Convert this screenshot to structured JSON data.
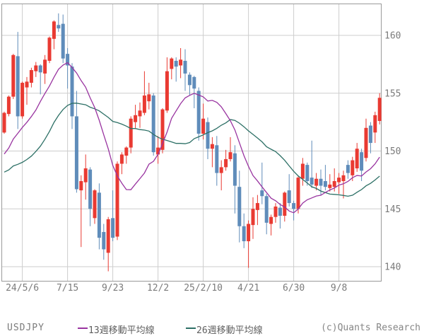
{
  "footer": {
    "pair_label": "USDJPY",
    "legend": [
      {
        "label": "13週移動平均線",
        "color": "#9934a0"
      },
      {
        "label": "26週移動平均線",
        "color": "#2d7066"
      }
    ],
    "copyright": "(c)Quants Research"
  },
  "chart_data": {
    "type": "candlestick",
    "symbol": "USDJPY",
    "interval": "weekly",
    "title": "",
    "xlabel": "",
    "ylabel": "",
    "grid": true,
    "legend_position": "bottom",
    "y_axis": {
      "ticks": [
        140,
        145,
        150,
        155,
        160
      ],
      "side": "right",
      "min": 138.7,
      "max": 162.9
    },
    "x_axis": {
      "labels": [
        {
          "text": "24/5/6",
          "candle_index": 4
        },
        {
          "text": "7/15",
          "candle_index": 14
        },
        {
          "text": "9/23",
          "candle_index": 24
        },
        {
          "text": "12/2",
          "candle_index": 34
        },
        {
          "text": "25/2/10",
          "candle_index": 44
        },
        {
          "text": "4/21",
          "candle_index": 54
        },
        {
          "text": "6/30",
          "candle_index": 64
        },
        {
          "text": "9/8",
          "candle_index": 74
        }
      ]
    },
    "colors": {
      "up": "#e93a32",
      "down": "#5f8cba",
      "ma13": "#9934a0",
      "ma26": "#2d7066",
      "grid": "#cdcdcd",
      "border": "#9a9a9a",
      "text": "#7b7b7b"
    },
    "series": [
      {
        "name": "13週移動平均線",
        "type": "sma",
        "window": 13,
        "color": "#9934a0"
      },
      {
        "name": "26週移動平均線",
        "type": "sma",
        "window": 26,
        "color": "#2d7066"
      }
    ],
    "ma_seed_closes": [
      149.7,
      149.4,
      149.4,
      151.5,
      149.6,
      149.4,
      146.8,
      145.0,
      142.2,
      142.4,
      141.0,
      144.6,
      144.9,
      148.1,
      148.2,
      146.5,
      149.3,
      150.2,
      150.5,
      150.1,
      147.1,
      149.0,
      151.4,
      151.4,
      151.6
    ],
    "candle_columns": [
      "open",
      "high",
      "low",
      "close"
    ],
    "candles": [
      [
        151.6,
        153.4,
        151.5,
        153.3
      ],
      [
        153.2,
        154.8,
        153.0,
        154.7
      ],
      [
        154.7,
        158.4,
        154.5,
        158.3
      ],
      [
        158.2,
        160.3,
        151.9,
        153.0
      ],
      [
        153.0,
        156.0,
        152.8,
        155.9
      ],
      [
        155.5,
        156.4,
        154.0,
        156.0
      ],
      [
        155.9,
        157.2,
        155.5,
        157.0
      ],
      [
        156.9,
        157.7,
        156.4,
        157.4
      ],
      [
        157.4,
        157.5,
        154.9,
        156.8
      ],
      [
        156.7,
        158.3,
        155.8,
        157.9
      ],
      [
        157.8,
        159.9,
        157.6,
        159.8
      ],
      [
        159.7,
        161.3,
        158.8,
        161.2
      ],
      [
        160.9,
        161.9,
        160.3,
        160.6
      ],
      [
        161.0,
        161.8,
        157.6,
        158.0
      ],
      [
        158.4,
        158.9,
        155.4,
        157.4
      ],
      [
        157.3,
        157.6,
        151.9,
        153.0
      ],
      [
        153.0,
        155.2,
        146.4,
        146.7
      ],
      [
        146.6,
        147.9,
        141.7,
        147.4
      ],
      [
        147.3,
        149.7,
        145.8,
        148.5
      ],
      [
        148.4,
        148.6,
        143.5,
        145.0
      ],
      [
        144.2,
        146.7,
        143.7,
        146.6
      ],
      [
        146.4,
        147.2,
        141.5,
        142.5
      ],
      [
        143.0,
        143.7,
        140.6,
        141.5
      ],
      [
        141.2,
        144.3,
        139.6,
        144.1
      ],
      [
        144.2,
        146.6,
        142.2,
        142.5
      ],
      [
        142.6,
        149.1,
        142.3,
        148.9
      ],
      [
        148.9,
        149.9,
        148.0,
        149.7
      ],
      [
        149.6,
        150.4,
        148.9,
        150.3
      ],
      [
        150.3,
        153.0,
        149.8,
        152.8
      ],
      [
        152.5,
        154.0,
        151.9,
        153.1
      ],
      [
        153.0,
        154.2,
        152.0,
        153.5
      ],
      [
        153.3,
        156.9,
        153.1,
        154.8
      ],
      [
        154.3,
        155.9,
        153.6,
        154.9
      ],
      [
        154.8,
        155.0,
        149.6,
        149.9
      ],
      [
        149.7,
        151.3,
        148.9,
        150.3
      ],
      [
        150.1,
        153.7,
        149.8,
        153.6
      ],
      [
        153.5,
        158.1,
        153.3,
        156.9
      ],
      [
        157.1,
        158.1,
        156.2,
        158.0
      ],
      [
        157.8,
        158.1,
        156.0,
        157.3
      ],
      [
        157.4,
        158.9,
        156.3,
        157.9
      ],
      [
        157.8,
        158.8,
        155.2,
        156.7
      ],
      [
        156.6,
        156.8,
        154.8,
        155.7
      ],
      [
        156.4,
        156.5,
        153.7,
        155.4
      ],
      [
        155.2,
        155.5,
        150.9,
        151.5
      ],
      [
        151.5,
        154.1,
        151.0,
        152.8
      ],
      [
        152.5,
        152.9,
        149.3,
        150.2
      ],
      [
        150.2,
        151.2,
        148.6,
        150.6
      ],
      [
        150.5,
        151.3,
        147.0,
        148.1
      ],
      [
        148.1,
        149.2,
        146.6,
        148.6
      ],
      [
        148.6,
        150.1,
        148.3,
        149.3
      ],
      [
        149.3,
        151.2,
        149.1,
        149.9
      ],
      [
        149.8,
        150.5,
        144.6,
        147.0
      ],
      [
        146.9,
        148.3,
        142.1,
        143.5
      ],
      [
        143.5,
        144.6,
        141.6,
        142.2
      ],
      [
        142.2,
        144.0,
        139.9,
        143.7
      ],
      [
        143.6,
        146.0,
        142.4,
        145.0
      ],
      [
        144.9,
        146.2,
        143.6,
        145.5
      ],
      [
        146.6,
        149.0,
        145.4,
        146.1
      ],
      [
        146.1,
        146.3,
        142.8,
        143.8
      ],
      [
        143.7,
        144.5,
        142.7,
        144.3
      ],
      [
        144.3,
        145.5,
        143.8,
        145.2
      ],
      [
        145.1,
        145.5,
        143.3,
        144.4
      ],
      [
        144.4,
        146.5,
        143.9,
        146.4
      ],
      [
        146.6,
        148.0,
        145.2,
        145.5
      ],
      [
        145.5,
        145.7,
        144.0,
        145.0
      ],
      [
        145.0,
        147.8,
        144.6,
        147.7
      ],
      [
        147.6,
        149.4,
        147.0,
        148.9
      ],
      [
        148.8,
        149.0,
        147.0,
        147.4
      ],
      [
        147.7,
        150.9,
        146.8,
        147.1
      ],
      [
        147.0,
        148.1,
        146.6,
        147.6
      ],
      [
        147.6,
        148.4,
        146.2,
        147.0
      ],
      [
        147.4,
        148.8,
        146.6,
        146.9
      ],
      [
        146.8,
        148.0,
        146.5,
        147.1
      ],
      [
        146.9,
        148.5,
        146.5,
        147.4
      ],
      [
        147.3,
        148.1,
        146.3,
        147.7
      ],
      [
        147.4,
        148.3,
        145.9,
        147.9
      ],
      [
        148.8,
        149.2,
        147.6,
        148.1
      ],
      [
        147.9,
        149.5,
        147.4,
        149.2
      ],
      [
        148.5,
        150.7,
        148.2,
        150.2
      ],
      [
        149.9,
        150.2,
        147.4,
        148.3
      ],
      [
        149.4,
        152.8,
        149.1,
        152.0
      ],
      [
        152.2,
        152.5,
        149.8,
        150.7
      ],
      [
        151.6,
        153.4,
        150.7,
        153.1
      ],
      [
        152.6,
        155.0,
        152.3,
        154.6
      ]
    ]
  }
}
